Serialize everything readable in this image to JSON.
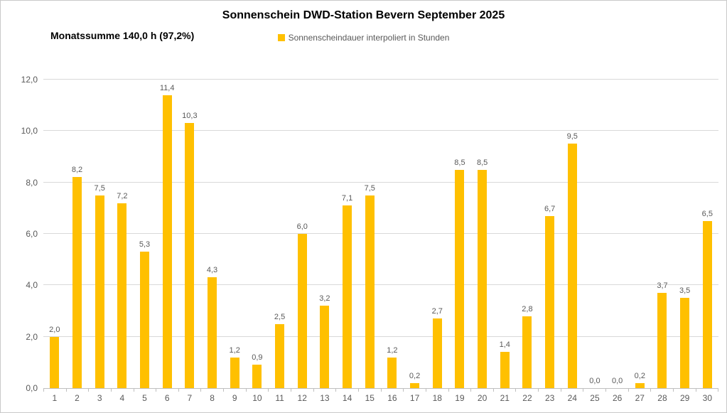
{
  "header": {
    "title": "Sonnenschein DWD-Station Bevern September 2025",
    "subtitle": "Monatssumme 140,0 h (97,2%)"
  },
  "legend": {
    "label": "Sonnenscheindauer interpoliert in Stunden",
    "swatch_color": "#FFC000",
    "position": "top-center"
  },
  "chart_data": {
    "type": "bar",
    "title": "Sonnenschein DWD-Station Bevern September 2025",
    "subtitle": "Monatssumme 140,0 h (97,2%)",
    "series_name": "Sonnenscheindauer interpoliert in Stunden",
    "xlabel": "",
    "ylabel": "",
    "categories": [
      1,
      2,
      3,
      4,
      5,
      6,
      7,
      8,
      9,
      10,
      11,
      12,
      13,
      14,
      15,
      16,
      17,
      18,
      19,
      20,
      21,
      22,
      23,
      24,
      25,
      26,
      27,
      28,
      29,
      30
    ],
    "values": [
      2.0,
      8.2,
      7.5,
      7.2,
      5.3,
      11.4,
      10.3,
      4.3,
      1.2,
      0.9,
      2.5,
      6.0,
      3.2,
      7.1,
      7.5,
      1.2,
      0.2,
      2.7,
      8.5,
      8.5,
      1.4,
      2.8,
      6.7,
      9.5,
      0.0,
      0.0,
      0.2,
      3.7,
      3.5,
      6.5
    ],
    "value_labels": [
      "2,0",
      "8,2",
      "7,5",
      "7,2",
      "5,3",
      "11,4",
      "10,3",
      "4,3",
      "1,2",
      "0,9",
      "2,5",
      "6,0",
      "3,2",
      "7,1",
      "7,5",
      "1,2",
      "0,2",
      "2,7",
      "8,5",
      "8,5",
      "1,4",
      "2,8",
      "6,7",
      "9,5",
      "0,0",
      "0,0",
      "0,2",
      "3,7",
      "3,5",
      "6,5"
    ],
    "ylim": [
      0,
      12
    ],
    "ytick_step": 2,
    "yticks": [
      "0,0",
      "2,0",
      "4,0",
      "6,0",
      "8,0",
      "10,0",
      "12,0"
    ],
    "grid": true,
    "legend_position": "top-center",
    "bar_color": "#FFC000",
    "gridline_color": "#D9D9D9",
    "axis_line_color": "#BFBFBF",
    "text_color": "#595959"
  }
}
